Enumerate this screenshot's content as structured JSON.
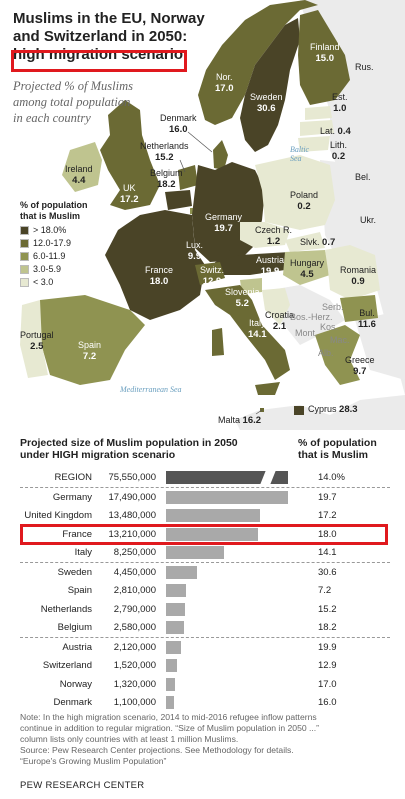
{
  "title_line1": "Muslims in the EU, Norway",
  "title_line2": "and Switzerland in 2050:",
  "title_highlight": "high migration scenario",
  "subtitle_line1": "Projected % of Muslims",
  "subtitle_line2": "among total population",
  "subtitle_line3": "in each country",
  "legend": {
    "title_line1": "% of population",
    "title_line2": "that is Muslim",
    "items": [
      {
        "label": "> 18.0%",
        "color": "#4a4427"
      },
      {
        "label": "12.0-17.9",
        "color": "#6b6a34"
      },
      {
        "label": "6.0-11.9",
        "color": "#8f9351"
      },
      {
        "label": "3.0-5.9",
        "color": "#bfc48f"
      },
      {
        "label": "< 3.0",
        "color": "#e7e9d2"
      }
    ]
  },
  "colors": {
    "sea": "#ffffff",
    "non_eu": "#ebebeb",
    "highlight": "#e0191e",
    "bar_region": "#555555",
    "bar_country": "#a9a9a9"
  },
  "map_labels": {
    "finland": {
      "name": "Finland",
      "value": "15.0"
    },
    "sweden": {
      "name": "Sweden",
      "value": "30.6"
    },
    "norway": {
      "name": "Nor.",
      "value": "17.0"
    },
    "estonia": {
      "name": "Est.",
      "value": "1.0"
    },
    "latvia": {
      "name": "Lat.",
      "value": "0.4"
    },
    "lithuania": {
      "name": "Lith.",
      "value": "0.2"
    },
    "russia": {
      "name": "Rus."
    },
    "denmark": {
      "name": "Denmark",
      "value": "16.0"
    },
    "netherlands": {
      "name": "Netherlands",
      "value": "15.2"
    },
    "belgium": {
      "name": "Belgium",
      "value": "18.2"
    },
    "ireland": {
      "name": "Ireland",
      "value": "4.4"
    },
    "uk": {
      "name": "UK",
      "value": "17.2"
    },
    "germany": {
      "name": "Germany",
      "value": "19.7"
    },
    "poland": {
      "name": "Poland",
      "value": "0.2"
    },
    "belarus": {
      "name": "Bel."
    },
    "ukraine": {
      "name": "Ukr."
    },
    "czech": {
      "name": "Czech R.",
      "value": "1.2"
    },
    "slovakia": {
      "name": "Slvk.",
      "value": "0.7"
    },
    "luxembourg": {
      "name": "Lux.",
      "value": "9.9"
    },
    "france": {
      "name": "France",
      "value": "18.0"
    },
    "switzerland": {
      "name": "Switz.",
      "value": "12.9"
    },
    "austria": {
      "name": "Austria",
      "value": "19.9"
    },
    "hungary": {
      "name": "Hungary",
      "value": "4.5"
    },
    "romania": {
      "name": "Romania",
      "value": "0.9"
    },
    "slovenia": {
      "name": "Slovenia",
      "value": "5.2"
    },
    "croatia": {
      "name": "Croatia",
      "value": "2.1"
    },
    "serbia": {
      "name": "Serb."
    },
    "bosnia": {
      "name": "Bos.-Herz."
    },
    "montenegro": {
      "name": "Mont."
    },
    "kosovo": {
      "name": "Kos."
    },
    "macedonia": {
      "name": "Mac."
    },
    "albania": {
      "name": "Alb."
    },
    "bulgaria": {
      "name": "Bul.",
      "value": "11.6"
    },
    "greece": {
      "name": "Greece",
      "value": "9.7"
    },
    "italy": {
      "name": "Italy",
      "value": "14.1"
    },
    "portugal": {
      "name": "Portugal",
      "value": "2.5"
    },
    "spain": {
      "name": "Spain",
      "value": "7.2"
    },
    "malta": {
      "name": "Malta",
      "value": "16.2"
    },
    "cyprus": {
      "name": "Cyprus",
      "value": "28.3"
    }
  },
  "seas": {
    "baltic_line1": "Baltic",
    "baltic_line2": "Sea",
    "med": "Mediterranean Sea"
  },
  "chart_data": {
    "type": "bar",
    "title": "Projected size of Muslim population in 2050 under HIGH migration scenario",
    "title_line1": "Projected size of Muslim population in 2050",
    "title_line2": "under HIGH migration scenario",
    "pct_header_line1": "% of population",
    "pct_header_line2": "that is Muslim",
    "rows": [
      {
        "name": "REGION",
        "population": 75550000,
        "pop_label": "75,550,000",
        "pct": "14.0%",
        "region": true
      },
      {
        "name": "Germany",
        "population": 17490000,
        "pop_label": "17,490,000",
        "pct": "19.7"
      },
      {
        "name": "United Kingdom",
        "population": 13480000,
        "pop_label": "13,480,000",
        "pct": "17.2"
      },
      {
        "name": "France",
        "population": 13210000,
        "pop_label": "13,210,000",
        "pct": "18.0",
        "highlighted": true
      },
      {
        "name": "Italy",
        "population": 8250000,
        "pop_label": "8,250,000",
        "pct": "14.1"
      },
      {
        "name": "Sweden",
        "population": 4450000,
        "pop_label": "4,450,000",
        "pct": "30.6"
      },
      {
        "name": "Spain",
        "population": 2810000,
        "pop_label": "2,810,000",
        "pct": "7.2"
      },
      {
        "name": "Netherlands",
        "population": 2790000,
        "pop_label": "2,790,000",
        "pct": "15.2"
      },
      {
        "name": "Belgium",
        "population": 2580000,
        "pop_label": "2,580,000",
        "pct": "18.2"
      },
      {
        "name": "Austria",
        "population": 2120000,
        "pop_label": "2,120,000",
        "pct": "19.9"
      },
      {
        "name": "Switzerland",
        "population": 1520000,
        "pop_label": "1,520,000",
        "pct": "12.9"
      },
      {
        "name": "Norway",
        "population": 1320000,
        "pop_label": "1,320,000",
        "pct": "17.0"
      },
      {
        "name": "Denmark",
        "population": 1100000,
        "pop_label": "1,100,000",
        "pct": "16.0"
      }
    ]
  },
  "note_line1": "Note: In the high migration scenario, 2014 to mid-2016 refugee inflow patterns",
  "note_line2": "continue in addition to regular migration. “Size of Muslim population in 2050 ...”",
  "note_line3": "column lists only countries with at least 1 million Muslims.",
  "source_line1": "Source: Pew Research Center projections. See Methodology for details.",
  "source_line2": "“Europe's Growing Muslim Population”",
  "footer": "PEW RESEARCH CENTER"
}
